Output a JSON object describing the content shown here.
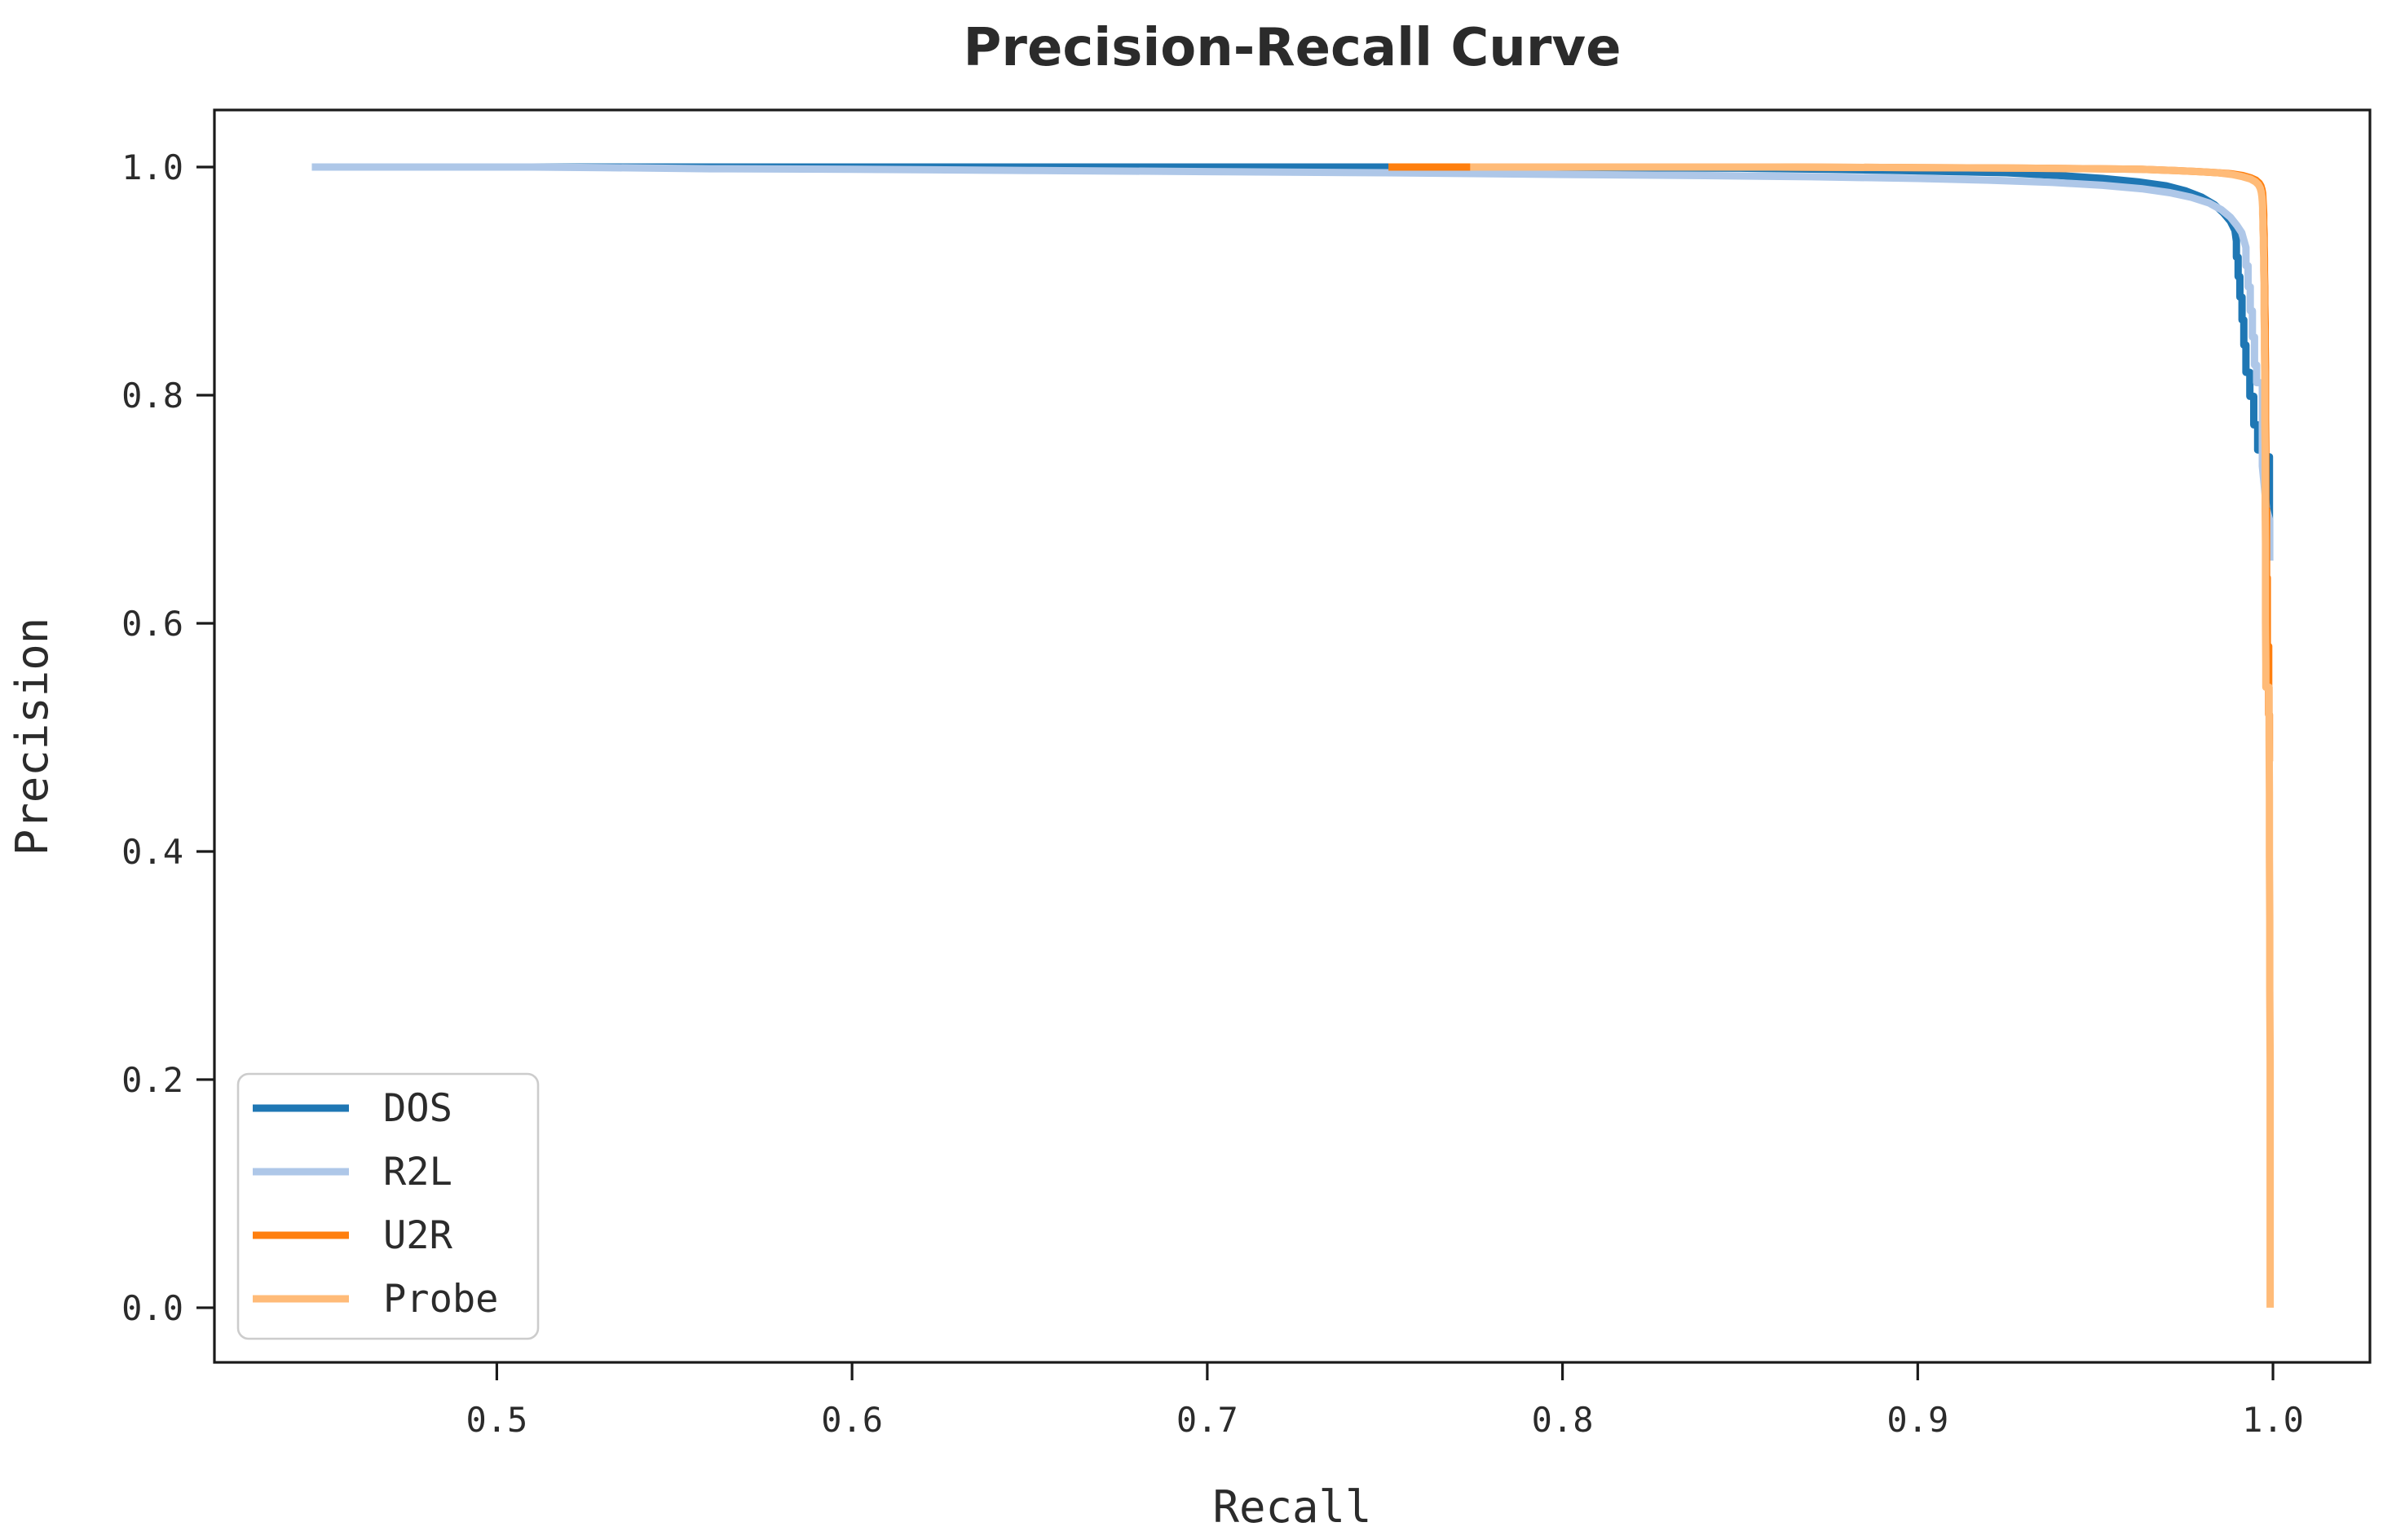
{
  "chart_data": {
    "type": "line",
    "title": "Precision-Recall Curve",
    "xlabel": "Recall",
    "ylabel": "Precision",
    "xlim": [
      0.4205,
      1.0273
    ],
    "ylim": [
      -0.0479,
      1.05
    ],
    "x_ticks": [
      0.5,
      0.6,
      0.7,
      0.8,
      0.9,
      1.0
    ],
    "x_tick_labels": [
      "0.5",
      "0.6",
      "0.7",
      "0.8",
      "0.9",
      "1.0"
    ],
    "y_ticks": [
      0.0,
      0.2,
      0.4,
      0.6,
      0.8,
      1.0
    ],
    "y_tick_labels": [
      "0.0",
      "0.2",
      "0.4",
      "0.6",
      "0.8",
      "1.0"
    ],
    "grid": false,
    "legend_position": "lower left",
    "legend_labels": [
      "DOS",
      "R2L",
      "U2R",
      "Probe"
    ],
    "series": [
      {
        "name": "DOS",
        "color": "#1f77b4",
        "points": [
          [
            0.448,
            1.0
          ],
          [
            0.6,
            1.0
          ],
          [
            0.7,
            1.0
          ],
          [
            0.76,
            1.0
          ],
          [
            0.8,
            0.9995
          ],
          [
            0.85,
            0.999
          ],
          [
            0.875,
            0.998
          ],
          [
            0.895,
            0.997
          ],
          [
            0.91,
            0.996
          ],
          [
            0.925,
            0.995
          ],
          [
            0.94,
            0.9925
          ],
          [
            0.952,
            0.99
          ],
          [
            0.962,
            0.987
          ],
          [
            0.97,
            0.9835
          ],
          [
            0.9755,
            0.979
          ],
          [
            0.98,
            0.9735
          ],
          [
            0.9835,
            0.967
          ],
          [
            0.986,
            0.96
          ],
          [
            0.988,
            0.9525
          ],
          [
            0.9893,
            0.9445
          ],
          [
            0.9897,
            0.935
          ],
          [
            0.9897,
            0.921
          ],
          [
            0.9902,
            0.921
          ],
          [
            0.9902,
            0.904
          ],
          [
            0.9907,
            0.904
          ],
          [
            0.9907,
            0.886
          ],
          [
            0.9913,
            0.886
          ],
          [
            0.9913,
            0.866
          ],
          [
            0.9918,
            0.866
          ],
          [
            0.9918,
            0.844
          ],
          [
            0.9924,
            0.844
          ],
          [
            0.9924,
            0.82
          ],
          [
            0.9935,
            0.82
          ],
          [
            0.9935,
            0.799
          ],
          [
            0.9946,
            0.799
          ],
          [
            0.9946,
            0.774
          ],
          [
            0.9957,
            0.774
          ],
          [
            0.9957,
            0.752
          ],
          [
            0.9977,
            0.752
          ],
          [
            0.9977,
            0.746
          ],
          [
            0.999,
            0.746
          ],
          [
            0.999,
            0.69
          ]
        ]
      },
      {
        "name": "R2L",
        "color": "#aec7e8",
        "points": [
          [
            0.448,
            1.0
          ],
          [
            0.51,
            1.0
          ],
          [
            0.53,
            0.9995
          ],
          [
            0.56,
            0.9985
          ],
          [
            0.6,
            0.998
          ],
          [
            0.65,
            0.997
          ],
          [
            0.7,
            0.996
          ],
          [
            0.75,
            0.995
          ],
          [
            0.8,
            0.9935
          ],
          [
            0.84,
            0.9925
          ],
          [
            0.87,
            0.9915
          ],
          [
            0.9,
            0.99
          ],
          [
            0.92,
            0.9885
          ],
          [
            0.938,
            0.9865
          ],
          [
            0.952,
            0.984
          ],
          [
            0.963,
            0.981
          ],
          [
            0.971,
            0.9775
          ],
          [
            0.977,
            0.9735
          ],
          [
            0.982,
            0.9685
          ],
          [
            0.9855,
            0.9625
          ],
          [
            0.988,
            0.956
          ],
          [
            0.9898,
            0.949
          ],
          [
            0.9912,
            0.9425
          ],
          [
            0.9918,
            0.936
          ],
          [
            0.9924,
            0.9295
          ],
          [
            0.9924,
            0.9135
          ],
          [
            0.993,
            0.9135
          ],
          [
            0.993,
            0.895
          ],
          [
            0.9936,
            0.895
          ],
          [
            0.9936,
            0.874
          ],
          [
            0.9942,
            0.874
          ],
          [
            0.9942,
            0.851
          ],
          [
            0.9948,
            0.851
          ],
          [
            0.9948,
            0.8265
          ],
          [
            0.9954,
            0.8265
          ],
          [
            0.9954,
            0.811
          ],
          [
            0.9963,
            0.811
          ],
          [
            0.997,
            0.81
          ],
          [
            0.997,
            0.738
          ],
          [
            0.9982,
            0.7
          ],
          [
            0.9991,
            0.69
          ],
          [
            0.9991,
            0.655
          ]
        ]
      },
      {
        "name": "U2R",
        "color": "#ff7f0e",
        "points": [
          [
            0.751,
            1.0
          ],
          [
            0.86,
            1.0
          ],
          [
            0.9,
            0.9995
          ],
          [
            0.93,
            0.999
          ],
          [
            0.95,
            0.9985
          ],
          [
            0.963,
            0.998
          ],
          [
            0.972,
            0.997
          ],
          [
            0.979,
            0.996
          ],
          [
            0.9845,
            0.995
          ],
          [
            0.9885,
            0.994
          ],
          [
            0.9915,
            0.9925
          ],
          [
            0.9938,
            0.9905
          ],
          [
            0.9952,
            0.9885
          ],
          [
            0.9961,
            0.986
          ],
          [
            0.9966,
            0.9835
          ],
          [
            0.9969,
            0.9805
          ],
          [
            0.9971,
            0.977
          ],
          [
            0.9972,
            0.9715
          ],
          [
            0.9973,
            0.9655
          ],
          [
            0.9974,
            0.9585
          ],
          [
            0.9974,
            0.95
          ],
          [
            0.9975,
            0.941
          ],
          [
            0.9975,
            0.931
          ],
          [
            0.9976,
            0.92
          ],
          [
            0.9976,
            0.908
          ],
          [
            0.9977,
            0.895
          ],
          [
            0.9977,
            0.88
          ],
          [
            0.9978,
            0.863
          ],
          [
            0.9978,
            0.845
          ],
          [
            0.9979,
            0.825
          ],
          [
            0.9979,
            0.803
          ],
          [
            0.9979,
            0.779
          ],
          [
            0.998,
            0.754
          ],
          [
            0.998,
            0.727
          ],
          [
            0.998,
            0.7
          ],
          [
            0.9982,
            0.7
          ],
          [
            0.9982,
            0.64
          ],
          [
            0.9984,
            0.64
          ],
          [
            0.9984,
            0.58
          ],
          [
            0.9988,
            0.58
          ],
          [
            0.9988,
            0.52
          ],
          [
            0.999,
            0.52
          ],
          [
            0.999,
            0.479
          ]
        ]
      },
      {
        "name": "Probe",
        "color": "#ffbb78",
        "points": [
          [
            0.774,
            1.0
          ],
          [
            0.86,
            1.0
          ],
          [
            0.9,
            0.9995
          ],
          [
            0.93,
            0.999
          ],
          [
            0.95,
            0.9985
          ],
          [
            0.963,
            0.998
          ],
          [
            0.972,
            0.997
          ],
          [
            0.979,
            0.996
          ],
          [
            0.9845,
            0.995
          ],
          [
            0.9885,
            0.9935
          ],
          [
            0.9915,
            0.9915
          ],
          [
            0.9937,
            0.9895
          ],
          [
            0.9951,
            0.987
          ],
          [
            0.9959,
            0.9845
          ],
          [
            0.9964,
            0.9815
          ],
          [
            0.9967,
            0.978
          ],
          [
            0.9969,
            0.974
          ],
          [
            0.997,
            0.9695
          ],
          [
            0.9971,
            0.9645
          ],
          [
            0.9971,
            0.959
          ],
          [
            0.9972,
            0.9525
          ],
          [
            0.9972,
            0.9455
          ],
          [
            0.9973,
            0.938
          ],
          [
            0.9973,
            0.9295
          ],
          [
            0.9974,
            0.92
          ],
          [
            0.9974,
            0.9095
          ],
          [
            0.9975,
            0.898
          ],
          [
            0.9975,
            0.885
          ],
          [
            0.9975,
            0.871
          ],
          [
            0.9976,
            0.856
          ],
          [
            0.9976,
            0.839
          ],
          [
            0.9977,
            0.8205
          ],
          [
            0.9977,
            0.8
          ],
          [
            0.9977,
            0.778
          ],
          [
            0.9978,
            0.754
          ],
          [
            0.9978,
            0.728
          ],
          [
            0.9978,
            0.7
          ],
          [
            0.9979,
            0.67
          ],
          [
            0.9979,
            0.637
          ],
          [
            0.9979,
            0.601
          ],
          [
            0.998,
            0.563
          ],
          [
            0.998,
            0.544
          ],
          [
            0.9989,
            0.544
          ],
          [
            0.9989,
            0.5
          ],
          [
            0.999,
            0.45
          ],
          [
            0.999,
            0.396
          ],
          [
            0.9991,
            0.34
          ],
          [
            0.9991,
            0.28
          ],
          [
            0.9992,
            0.216
          ],
          [
            0.9992,
            0.148
          ],
          [
            0.9992,
            0.075
          ],
          [
            0.9992,
            0.0
          ]
        ]
      }
    ]
  },
  "style": {
    "line_width": 9,
    "spine_color": "#1a1a1a",
    "text_color": "#2b2b2b",
    "background": "#ffffff"
  }
}
